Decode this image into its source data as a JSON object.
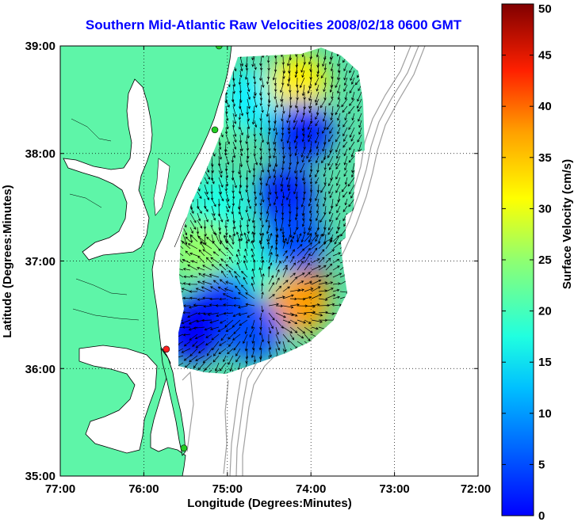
{
  "title": "Southern Mid-Atlantic Raw Velocities 2008/02/18 0600 GMT",
  "x_axis": {
    "label": "Longitude (Degrees:Minutes)",
    "ticks": [
      "77:00",
      "76:00",
      "75:00",
      "74:00",
      "73:00",
      "72:00"
    ]
  },
  "y_axis": {
    "label": "Latitude (Degrees:Minutes)",
    "ticks": [
      "39:00",
      "38:00",
      "37:00",
      "36:00",
      "35:00"
    ]
  },
  "colorbar": {
    "label": "Surface Velocity (cm/s)",
    "ticks": [
      "50",
      "45",
      "40",
      "35",
      "30",
      "25",
      "20",
      "15",
      "10",
      "5",
      "0"
    ],
    "range": [
      0,
      50
    ],
    "colormap": "jet"
  },
  "map": {
    "lon_range": [
      -77,
      -72
    ],
    "lat_range": [
      35,
      39
    ],
    "grid": "dotted",
    "land_color": "#5ef5a8",
    "coastline_color": "#000000",
    "bathymetry_color": "#a0a0a0",
    "stations": [
      {
        "color": "#22cc22",
        "lon": -75.1,
        "lat": 39.0
      },
      {
        "color": "#22cc22",
        "lon": -75.15,
        "lat": 38.22
      },
      {
        "color": "#ff2020",
        "lon": -75.73,
        "lat": 36.18
      },
      {
        "color": "#22cc22",
        "lon": -75.52,
        "lat": 35.26
      }
    ]
  },
  "chart_data": {
    "type": "heatmap",
    "title": "Southern Mid-Atlantic Raw Velocities 2008/02/18 0600 GMT",
    "xlabel": "Longitude (Degrees:Minutes)",
    "ylabel": "Latitude (Degrees:Minutes)",
    "xlim": [
      -77,
      -72
    ],
    "ylim": [
      35,
      39
    ],
    "colorbar_range": [
      0,
      50
    ],
    "colorbar_label": "Surface Velocity (cm/s)",
    "regions": [
      {
        "lon": -75.1,
        "lat": 38.4,
        "speed": 24
      },
      {
        "lon": -74.7,
        "lat": 38.5,
        "speed": 18
      },
      {
        "lon": -74.15,
        "lat": 38.65,
        "speed": 32
      },
      {
        "lon": -74.1,
        "lat": 38.2,
        "speed": 8
      },
      {
        "lon": -74.3,
        "lat": 37.6,
        "speed": 8
      },
      {
        "lon": -75.1,
        "lat": 37.5,
        "speed": 20
      },
      {
        "lon": -75.3,
        "lat": 37.1,
        "speed": 26
      },
      {
        "lon": -74.65,
        "lat": 37.0,
        "speed": 21
      },
      {
        "lon": -74.2,
        "lat": 37.2,
        "speed": 10
      },
      {
        "lon": -73.96,
        "lat": 36.82,
        "speed": 48
      },
      {
        "lon": -74.15,
        "lat": 36.6,
        "speed": 36
      },
      {
        "lon": -75.05,
        "lat": 36.6,
        "speed": 8
      },
      {
        "lon": -75.4,
        "lat": 36.35,
        "speed": 6
      },
      {
        "lon": -74.7,
        "lat": 36.35,
        "speed": 10
      }
    ]
  }
}
